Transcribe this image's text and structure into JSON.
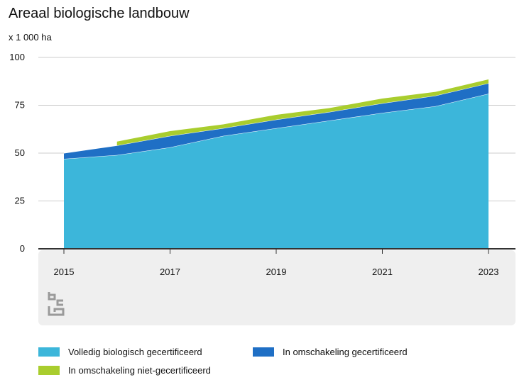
{
  "title": "Areaal biologische landbouw",
  "unit_label": "x 1 000 ha",
  "colors": {
    "volledig": "#3CB6DA",
    "omschakeling_gecert": "#1F6FC5",
    "omschakeling_niet": "#A9CD2E",
    "background_panel": "#EFEFEF",
    "grid": "#CCCCCC",
    "axis": "#333333"
  },
  "chart_data": {
    "type": "area",
    "stacked": true,
    "x": [
      2015,
      2016,
      2017,
      2018,
      2019,
      2020,
      2021,
      2022,
      2023
    ],
    "x_tick_labels": [
      "2015",
      "2017",
      "2019",
      "2021",
      "2023"
    ],
    "x_tick_values": [
      2015,
      2017,
      2019,
      2021,
      2023
    ],
    "y_ticks": [
      "0",
      "25",
      "50",
      "75",
      "100"
    ],
    "y_tick_values": [
      0,
      25,
      50,
      75,
      100
    ],
    "ylim": [
      0,
      100
    ],
    "grid": true,
    "legend_position": "bottom",
    "series": [
      {
        "name": "Volledig biologisch gecertificeerd",
        "color_key": "volledig",
        "values": [
          47,
          49,
          53,
          59,
          63,
          67,
          71,
          74.5,
          81
        ]
      },
      {
        "name": "In omschakeling gecertificeerd",
        "color_key": "omschakeling_gecert",
        "values": [
          3,
          5,
          6,
          4,
          4.5,
          4.5,
          5,
          5.5,
          5.5
        ]
      },
      {
        "name": "In omschakeling niet-gecertificeerd",
        "color_key": "omschakeling_niet",
        "values": [
          null,
          2,
          2.5,
          2,
          2.5,
          2,
          2.5,
          2,
          2
        ]
      }
    ]
  }
}
